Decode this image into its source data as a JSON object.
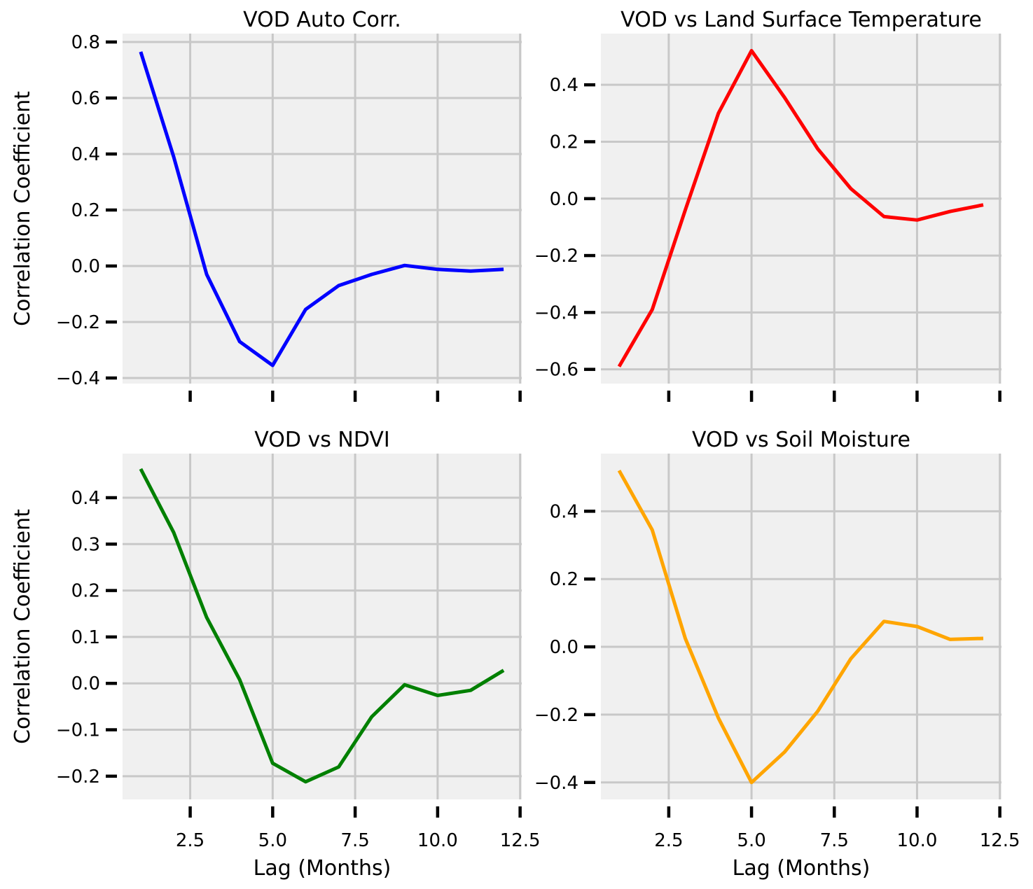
{
  "chart_data": [
    {
      "type": "line",
      "title": "VOD Auto Corr.",
      "xlabel": "",
      "ylabel": "Correlation Coefficient",
      "color": "#0000ff",
      "x": [
        1,
        2,
        3,
        4,
        5,
        6,
        7,
        8,
        9,
        10,
        11,
        12
      ],
      "values": [
        0.765,
        0.39,
        -0.03,
        -0.27,
        -0.355,
        -0.155,
        -0.07,
        -0.03,
        0.002,
        -0.012,
        -0.018,
        -0.012
      ],
      "xlim": [
        0.45,
        12.55
      ],
      "ylim": [
        -0.42,
        0.83
      ],
      "xticks": [
        2.5,
        5.0,
        7.5,
        10.0,
        12.5
      ],
      "xtick_labels": [
        "",
        "",
        "",
        "",
        ""
      ],
      "yticks": [
        -0.4,
        -0.2,
        0.0,
        0.2,
        0.4,
        0.6,
        0.8
      ],
      "ytick_labels": [
        "−0.4",
        "−0.2",
        "0.0",
        "0.2",
        "0.4",
        "0.6",
        "0.8"
      ],
      "grid": true
    },
    {
      "type": "line",
      "title": "VOD vs Land Surface Temperature",
      "xlabel": "",
      "ylabel": "",
      "color": "#ff0000",
      "x": [
        1,
        2,
        3,
        4,
        5,
        6,
        7,
        8,
        9,
        10,
        11,
        12
      ],
      "values": [
        -0.59,
        -0.39,
        -0.04,
        0.3,
        0.52,
        0.355,
        0.175,
        0.035,
        -0.063,
        -0.075,
        -0.045,
        -0.022
      ],
      "xlim": [
        0.45,
        12.55
      ],
      "ylim": [
        -0.65,
        0.58
      ],
      "xticks": [
        2.5,
        5.0,
        7.5,
        10.0,
        12.5
      ],
      "xtick_labels": [
        "",
        "",
        "",
        "",
        ""
      ],
      "yticks": [
        -0.6,
        -0.4,
        -0.2,
        0.0,
        0.2,
        0.4
      ],
      "ytick_labels": [
        "−0.6",
        "−0.4",
        "−0.2",
        "0.0",
        "0.2",
        "0.4"
      ],
      "grid": true
    },
    {
      "type": "line",
      "title": "VOD vs NDVI",
      "xlabel": "Lag (Months)",
      "ylabel": "Correlation Coefficient",
      "color": "#008000",
      "x": [
        1,
        2,
        3,
        4,
        5,
        6,
        7,
        8,
        9,
        10,
        11,
        12
      ],
      "values": [
        0.462,
        0.325,
        0.142,
        0.008,
        -0.172,
        -0.212,
        -0.18,
        -0.072,
        -0.003,
        -0.026,
        -0.015,
        0.028
      ],
      "xlim": [
        0.45,
        12.55
      ],
      "ylim": [
        -0.25,
        0.495
      ],
      "xticks": [
        2.5,
        5.0,
        7.5,
        10.0,
        12.5
      ],
      "xtick_labels": [
        "2.5",
        "5.0",
        "7.5",
        "10.0",
        "12.5"
      ],
      "yticks": [
        -0.2,
        -0.1,
        0.0,
        0.1,
        0.2,
        0.3,
        0.4
      ],
      "ytick_labels": [
        "−0.2",
        "−0.1",
        "0.0",
        "0.1",
        "0.2",
        "0.3",
        "0.4"
      ],
      "grid": true
    },
    {
      "type": "line",
      "title": "VOD vs Soil Moisture",
      "xlabel": "Lag (Months)",
      "ylabel": "",
      "color": "#ffa500",
      "x": [
        1,
        2,
        3,
        4,
        5,
        6,
        7,
        8,
        9,
        10,
        11,
        12
      ],
      "values": [
        0.52,
        0.345,
        0.025,
        -0.21,
        -0.4,
        -0.31,
        -0.19,
        -0.035,
        0.075,
        0.06,
        0.022,
        0.025
      ],
      "xlim": [
        0.45,
        12.55
      ],
      "ylim": [
        -0.45,
        0.57
      ],
      "xticks": [
        2.5,
        5.0,
        7.5,
        10.0,
        12.5
      ],
      "xtick_labels": [
        "2.5",
        "5.0",
        "7.5",
        "10.0",
        "12.5"
      ],
      "yticks": [
        -0.4,
        -0.2,
        0.0,
        0.2,
        0.4
      ],
      "ytick_labels": [
        "−0.4",
        "−0.2",
        "0.0",
        "0.2",
        "0.4"
      ],
      "grid": true
    }
  ]
}
